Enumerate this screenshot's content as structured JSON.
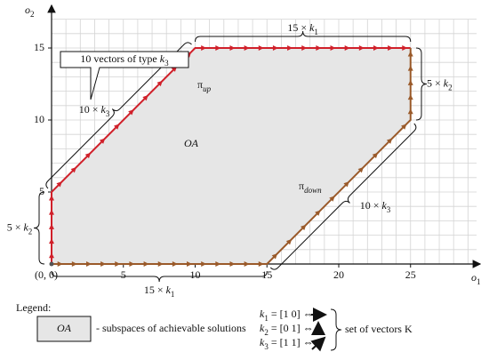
{
  "x_axis": {
    "label": "o",
    "sub": "1",
    "ticks": [
      "(0, 0)",
      "5",
      "10",
      "15",
      "20",
      "25"
    ]
  },
  "y_axis": {
    "label": "o",
    "sub": "2",
    "ticks": [
      "5",
      "10",
      "15"
    ]
  },
  "region_label": "OA",
  "pi_up": {
    "symbol": "π",
    "sub": "up"
  },
  "pi_down": {
    "symbol": "π",
    "sub": "down"
  },
  "braces": {
    "top": {
      "text": "15 × ",
      "var": "k",
      "sub": "1"
    },
    "right": {
      "text": "5 × ",
      "var": "k",
      "sub": "2"
    },
    "left": {
      "text": "5 × ",
      "var": "k",
      "sub": "2"
    },
    "bottom": {
      "text": "15 × ",
      "var": "k",
      "sub": "1"
    },
    "upper_diag": {
      "text": "10 × ",
      "var": "k",
      "sub": "3"
    },
    "lower_diag": {
      "text": "10 × ",
      "var": "k",
      "sub": "3"
    }
  },
  "callout": {
    "text": "10 vectors of type ",
    "var": "k",
    "sub": "3"
  },
  "legend": {
    "title": "Legend:",
    "box_label": "OA",
    "box_desc": "- subspaces of achievable solutions",
    "vectors": [
      {
        "var": "k",
        "sub": "1",
        "rest": " = [1 0] ⇔"
      },
      {
        "var": "k",
        "sub": "2",
        "rest": " = [0 1] ⇔"
      },
      {
        "var": "k",
        "sub": "3",
        "rest": " = [1 1] ⇔"
      }
    ],
    "set": "set of vectors K"
  }
}
